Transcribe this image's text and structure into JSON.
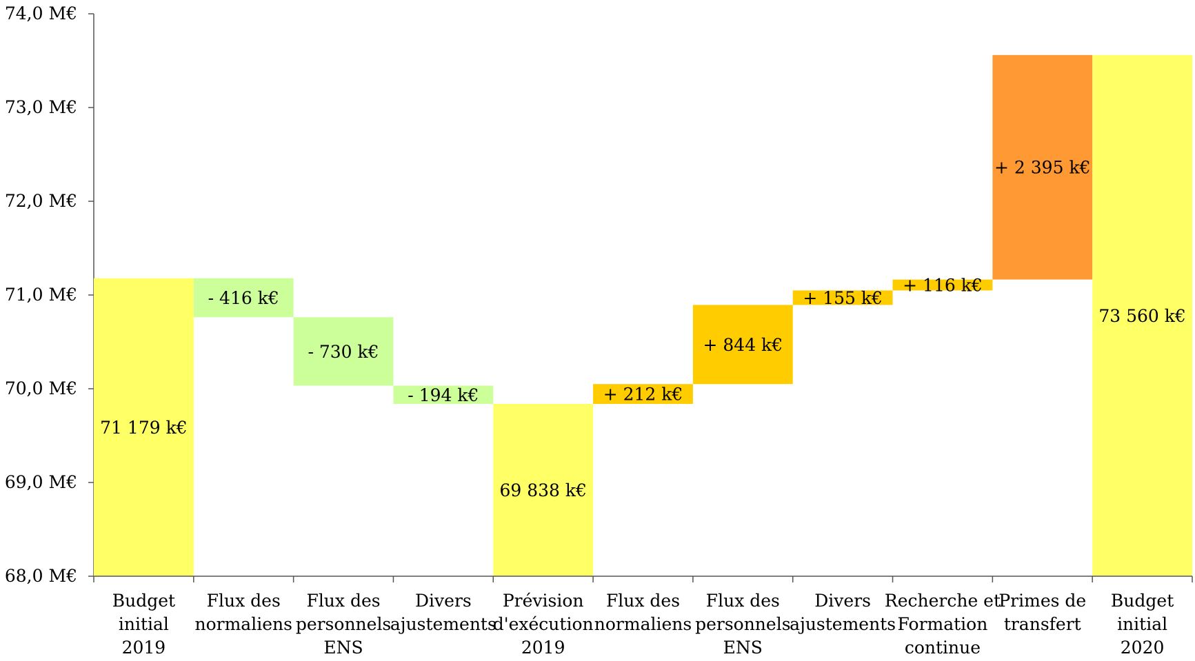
{
  "chart_data": {
    "type": "bar",
    "subtype": "waterfall",
    "title": "",
    "xlabel": "",
    "ylabel": "",
    "ylim": [
      68.0,
      74.0
    ],
    "yticks": [
      "68,0 M€",
      "69,0 M€",
      "70,0 M€",
      "71,0 M€",
      "72,0 M€",
      "73,0 M€",
      "74,0 M€"
    ],
    "grid": false,
    "legend": "none",
    "bars": [
      {
        "category": [
          "Budget",
          "initial",
          "2019"
        ],
        "start": 68.0,
        "end": 71.179,
        "label": "71 179 k€",
        "color": "#FFFF66"
      },
      {
        "category": [
          "Flux des",
          "normaliens"
        ],
        "start": 71.179,
        "end": 70.763,
        "label": "- 416 k€",
        "color": "#CCFF99"
      },
      {
        "category": [
          "Flux des",
          "personnels",
          "ENS"
        ],
        "start": 70.763,
        "end": 70.033,
        "label": "- 730 k€",
        "color": "#CCFF99"
      },
      {
        "category": [
          "Divers",
          "ajustements"
        ],
        "start": 70.033,
        "end": 69.838,
        "label": "- 194 k€",
        "color": "#CCFF99"
      },
      {
        "category": [
          "Prévision",
          "d'exécution",
          "2019"
        ],
        "start": 68.0,
        "end": 69.838,
        "label": "69 838 k€",
        "color": "#FFFF66"
      },
      {
        "category": [
          "Flux des",
          "normaliens"
        ],
        "start": 69.838,
        "end": 70.05,
        "label": "+ 212 k€",
        "color": "#FFCC00"
      },
      {
        "category": [
          "Flux des",
          "personnels",
          "ENS"
        ],
        "start": 70.05,
        "end": 70.894,
        "label": "+ 844 k€",
        "color": "#FFCC00"
      },
      {
        "category": [
          "Divers",
          "ajustements"
        ],
        "start": 70.894,
        "end": 71.049,
        "label": "+ 155 k€",
        "color": "#FFCC00"
      },
      {
        "category": [
          "Recherche et",
          "Formation",
          "continue"
        ],
        "start": 71.049,
        "end": 71.165,
        "label": "+ 116 k€",
        "color": "#FFCC00"
      },
      {
        "category": [
          "Primes de",
          "transfert"
        ],
        "start": 71.165,
        "end": 73.56,
        "label": "+ 2 395 k€",
        "color": "#FF9933"
      },
      {
        "category": [
          "Budget",
          "initial",
          "2020"
        ],
        "start": 68.0,
        "end": 73.56,
        "label": "73 560 k€",
        "color": "#FFFF66"
      }
    ]
  }
}
